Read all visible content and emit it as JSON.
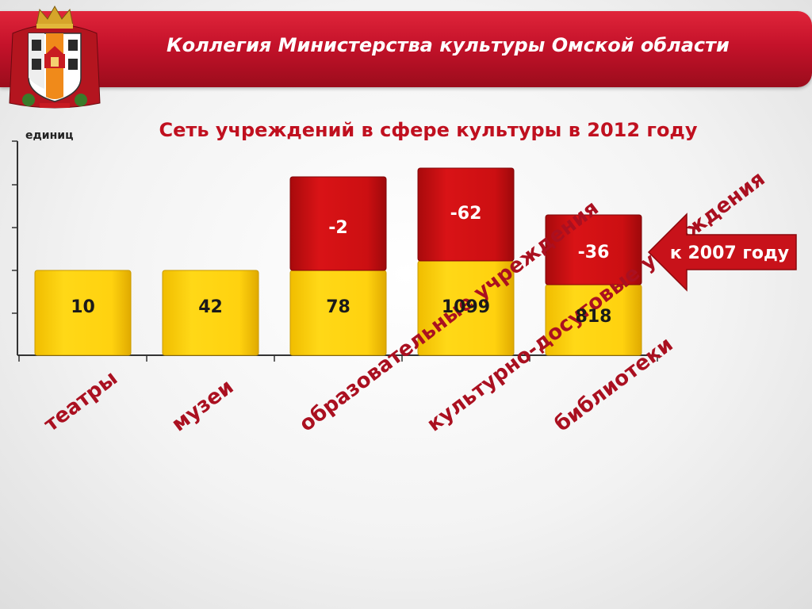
{
  "header": {
    "title": "Коллегия Министерства культуры Омской области"
  },
  "emblem": {
    "icon": "omsk-coat-of-arms-icon"
  },
  "colors": {
    "header": "#c4122a",
    "base_bar": "#ffd20f",
    "change_bar": "#cc0f12",
    "title": "#c0101f",
    "category_label": "#aa1020"
  },
  "chart_data": {
    "type": "bar",
    "title": "Сеть учреждений в сфере культуры в 2012 году",
    "ylabel": "единиц",
    "categories": [
      "театры",
      "музеи",
      "образовательные учреждения",
      "культурно-досуговые учреждения",
      "библиотеки"
    ],
    "series": [
      {
        "values": [
          10,
          42,
          78,
          1099,
          818
        ]
      },
      {
        "values": [
          null,
          null,
          -2,
          -62,
          -36
        ]
      }
    ],
    "callout": "к 2007 году",
    "grid": false
  }
}
